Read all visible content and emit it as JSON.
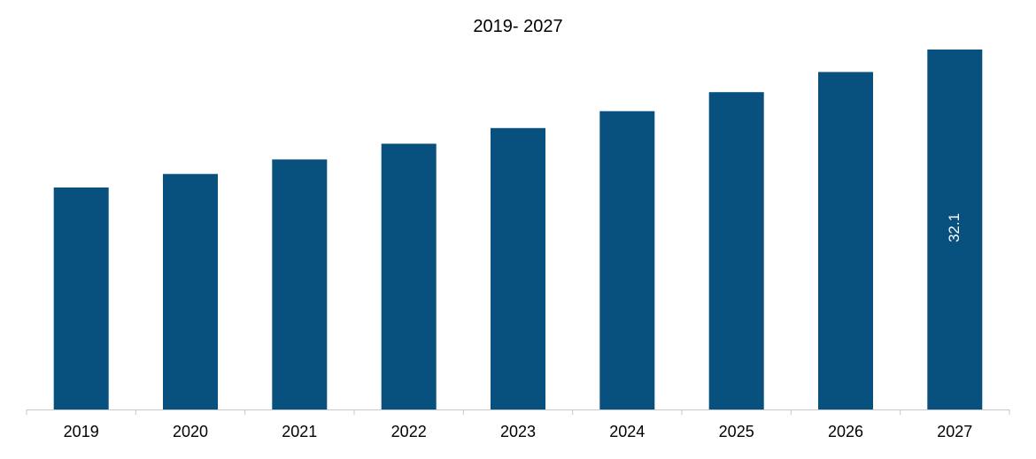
{
  "chart_data": {
    "type": "bar",
    "title": "2019- 2027",
    "xlabel": "",
    "ylabel": "",
    "categories": [
      "2019",
      "2020",
      "2021",
      "2022",
      "2023",
      "2024",
      "2025",
      "2026",
      "2027"
    ],
    "values": [
      19.8,
      21.0,
      22.3,
      23.7,
      25.1,
      26.6,
      28.3,
      30.1,
      32.1
    ],
    "data_labels": [
      "",
      "",
      "",
      "",
      "",
      "",
      "",
      "",
      "32.1"
    ],
    "ylim": [
      0,
      32.1
    ],
    "grid": false,
    "legend": "none",
    "colors": {
      "bar": "#08507d",
      "axis": "#c8c8c8",
      "data_label": "#ffffff"
    }
  }
}
